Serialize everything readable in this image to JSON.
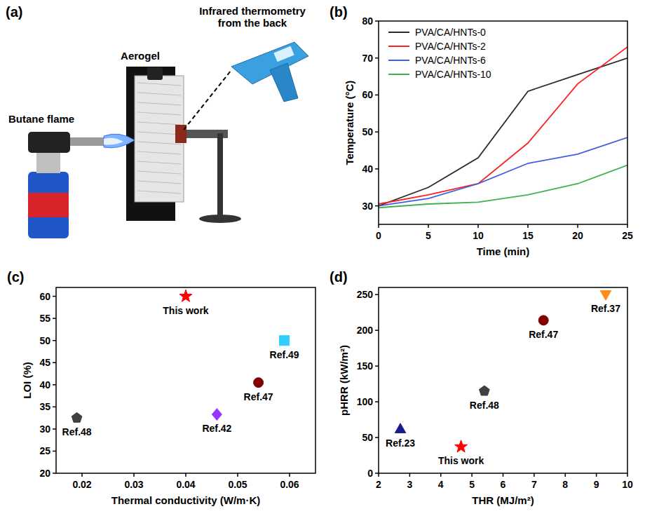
{
  "illustration": {
    "panel_label": "(a)",
    "labels": [
      "Infrared thermometry from the back",
      "Aerogel",
      "Butane flame"
    ]
  },
  "chart_data": [
    {
      "type": "line",
      "panel_label": "(b)",
      "x_label": "Time (min)",
      "y_label": "Temperature (°C)",
      "x": [
        0,
        5,
        10,
        15,
        20,
        25
      ],
      "xlim": [
        0,
        25
      ],
      "xticks": [
        0,
        5,
        10,
        15,
        20,
        25
      ],
      "ylim": [
        25,
        80
      ],
      "yticks": [
        30,
        40,
        50,
        60,
        70,
        80
      ],
      "legend": "upper left",
      "series": [
        {
          "name": "PVA/CA/HNTs-0",
          "color": "#2b2b2b",
          "values": [
            30,
            35,
            43,
            61,
            65.5,
            70
          ]
        },
        {
          "name": "PVA/CA/HNTs-2",
          "color": "#ff2020",
          "values": [
            30.5,
            33,
            36,
            47,
            63,
            73
          ]
        },
        {
          "name": "PVA/CA/HNTs-6",
          "color": "#3f5fe0",
          "values": [
            30,
            32,
            36,
            41.5,
            44,
            48.5
          ]
        },
        {
          "name": "PVA/CA/HNTs-10",
          "color": "#40b050",
          "values": [
            29.5,
            30.5,
            31,
            33,
            36,
            41
          ]
        }
      ]
    },
    {
      "type": "scatter",
      "panel_label": "(c)",
      "x_label": "Thermal conductivity (W/m·K)",
      "y_label": "LOI (%)",
      "xlim": [
        0.015,
        0.065
      ],
      "xticks": [
        0.02,
        0.03,
        0.04,
        0.05,
        0.06
      ],
      "ylim": [
        20,
        62
      ],
      "yticks": [
        20,
        25,
        30,
        35,
        40,
        45,
        50,
        55,
        60
      ],
      "series": [
        {
          "name": "This work",
          "color": "#ff0000",
          "marker": "star",
          "x": [
            0.04
          ],
          "values": [
            60
          ]
        },
        {
          "name": "Ref.49",
          "color": "#33ccff",
          "marker": "square",
          "x": [
            0.059
          ],
          "values": [
            50
          ]
        },
        {
          "name": "Ref.47",
          "color": "#800000",
          "marker": "circle",
          "x": [
            0.054
          ],
          "values": [
            40.5
          ]
        },
        {
          "name": "Ref.42",
          "color": "#9933ff",
          "marker": "diamond",
          "x": [
            0.046
          ],
          "values": [
            33.3
          ]
        },
        {
          "name": "Ref.48",
          "color": "#404040",
          "marker": "pentagon",
          "x": [
            0.019
          ],
          "values": [
            32.5
          ]
        }
      ]
    },
    {
      "type": "scatter",
      "panel_label": "(d)",
      "x_label": "THR (MJ/m²)",
      "y_label": "pHRR (kW/m²)",
      "xlim": [
        2,
        10
      ],
      "xticks": [
        2,
        3,
        4,
        5,
        6,
        7,
        8,
        9,
        10
      ],
      "ylim": [
        0,
        260
      ],
      "yticks": [
        0,
        50,
        100,
        150,
        200,
        250
      ],
      "series": [
        {
          "name": "Ref.23",
          "color": "#1a1a8c",
          "marker": "triangle",
          "x": [
            2.7
          ],
          "values": [
            62
          ]
        },
        {
          "name": "This work",
          "color": "#ff0000",
          "marker": "star",
          "x": [
            4.65
          ],
          "values": [
            37
          ]
        },
        {
          "name": "Ref.48",
          "color": "#404040",
          "marker": "pentagon",
          "x": [
            5.4
          ],
          "values": [
            115
          ]
        },
        {
          "name": "Ref.47",
          "color": "#800000",
          "marker": "circle",
          "x": [
            7.3
          ],
          "values": [
            214
          ]
        },
        {
          "name": "Ref.37",
          "color": "#ff8c1a",
          "marker": "triangle-down",
          "x": [
            9.3
          ],
          "values": [
            250
          ]
        }
      ]
    }
  ]
}
